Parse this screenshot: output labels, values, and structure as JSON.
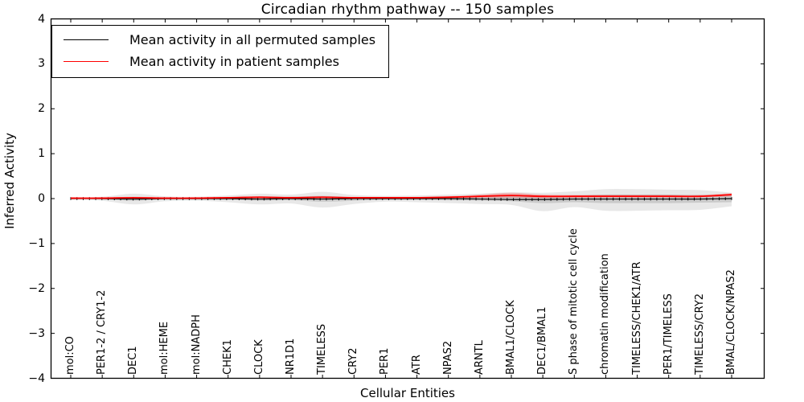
{
  "chart_data": {
    "type": "line",
    "title": "Circadian rhythm pathway -- 150 samples",
    "xlabel": "Cellular Entities",
    "ylabel": "Inferred Activity",
    "ylim": [
      -4,
      4
    ],
    "yticks": [
      4,
      3,
      2,
      1,
      0,
      -1,
      -2,
      -3,
      -4
    ],
    "grid": false,
    "legend_position": "upper left",
    "categories": [
      "mol:CO",
      "PER1-2 / CRY1-2",
      "DEC1",
      "mol:HEME",
      "mol:NADPH",
      "CHEK1",
      "CLOCK",
      "NR1D1",
      "TIMELESS",
      "CRY2",
      "PER1",
      "ATR",
      "NPAS2",
      "ARNTL",
      "BMAL1/CLOCK",
      "DEC1/BMAL1",
      "S phase of mitotic cell cycle",
      "chromatin modification",
      "TIMELESS/CHEK1/ATR",
      "PER1/TIMELESS",
      "TIMELESS/CRY2",
      "BMAL/CLOCK/NPAS2"
    ],
    "series": [
      {
        "name": "Mean activity in all permuted samples",
        "color": "#000000",
        "marker": "vertical-tick",
        "values": [
          0,
          0,
          -0.01,
          0,
          0,
          0,
          -0.01,
          0,
          -0.01,
          0,
          0,
          0,
          0,
          -0.01,
          -0.02,
          -0.02,
          -0.01,
          -0.01,
          -0.01,
          -0.01,
          -0.01,
          0
        ]
      },
      {
        "name": "Mean activity in patient samples",
        "color": "#ff0000",
        "marker": "none",
        "values": [
          0.01,
          0.01,
          0.02,
          0.01,
          0.01,
          0.02,
          0.03,
          0.02,
          0.03,
          0.02,
          0.02,
          0.02,
          0.03,
          0.05,
          0.07,
          0.05,
          0.05,
          0.05,
          0.05,
          0.05,
          0.05,
          0.09
        ]
      }
    ],
    "bands": [
      {
        "name": "permuted-range-outer",
        "color": "rgba(0,0,0,0.09)",
        "upper": [
          0.02,
          0.04,
          0.11,
          0.05,
          0.04,
          0.07,
          0.11,
          0.09,
          0.15,
          0.08,
          0.06,
          0.07,
          0.09,
          0.11,
          0.14,
          0.13,
          0.16,
          0.21,
          0.21,
          0.2,
          0.19,
          0.13
        ],
        "lower": [
          -0.03,
          -0.05,
          -0.13,
          -0.06,
          -0.05,
          -0.08,
          -0.13,
          -0.11,
          -0.2,
          -0.12,
          -0.07,
          -0.08,
          -0.1,
          -0.12,
          -0.14,
          -0.28,
          -0.19,
          -0.27,
          -0.27,
          -0.26,
          -0.25,
          -0.17
        ]
      },
      {
        "name": "permuted-range-inner",
        "color": "rgba(0,0,0,0.13)",
        "upper": [
          0.01,
          0.02,
          0.04,
          0.02,
          0.02,
          0.03,
          0.05,
          0.04,
          0.06,
          0.03,
          0.02,
          0.03,
          0.04,
          0.05,
          0.06,
          0.06,
          0.07,
          0.09,
          0.09,
          0.09,
          0.08,
          0.09
        ],
        "lower": [
          -0.01,
          -0.02,
          -0.05,
          -0.02,
          -0.02,
          -0.03,
          -0.05,
          -0.04,
          -0.07,
          -0.05,
          -0.03,
          -0.03,
          -0.04,
          -0.05,
          -0.06,
          -0.1,
          -0.08,
          -0.1,
          -0.1,
          -0.1,
          -0.09,
          -0.08
        ]
      },
      {
        "name": "patient-range",
        "color": "rgba(255,0,0,0.22)",
        "upper": [
          0.02,
          0.02,
          0.03,
          0.02,
          0.02,
          0.03,
          0.05,
          0.04,
          0.05,
          0.03,
          0.03,
          0.03,
          0.05,
          0.09,
          0.13,
          0.09,
          0.08,
          0.08,
          0.08,
          0.08,
          0.08,
          0.12
        ],
        "lower": [
          0,
          0,
          0,
          0,
          0,
          0,
          0.01,
          0.01,
          0.01,
          0,
          0,
          0,
          0.01,
          0.02,
          0.02,
          0.01,
          0.02,
          0.03,
          0.03,
          0.03,
          0.03,
          0.05
        ]
      }
    ]
  }
}
